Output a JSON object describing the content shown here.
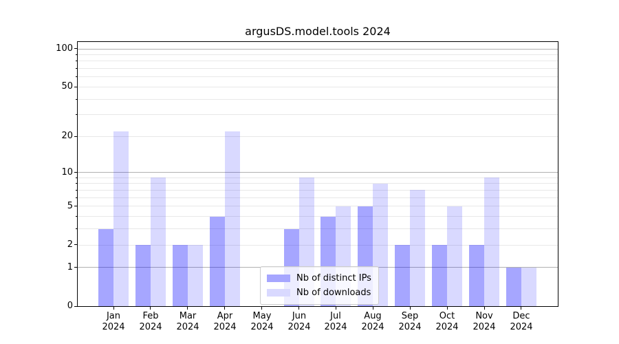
{
  "figure": {
    "background": "#ffffff"
  },
  "chart_data": {
    "type": "bar",
    "title": "argusDS.model.tools 2024",
    "xlabel": "",
    "ylabel": "",
    "categories": [
      "Jan",
      "Feb",
      "Mar",
      "Apr",
      "May",
      "Jun",
      "Jul",
      "Aug",
      "Sep",
      "Oct",
      "Nov",
      "Dec"
    ],
    "category_year": "2024",
    "series": [
      {
        "name": "Nb of distinct IPs",
        "bar_color": "rgba(0,0,255,0.35)",
        "legend_color": "#a6a6ff",
        "values": [
          3,
          2,
          2,
          4,
          0,
          3,
          4,
          5,
          2,
          2,
          2,
          1
        ]
      },
      {
        "name": "Nb of downloads",
        "bar_color": "rgba(0,0,255,0.15)",
        "legend_color": "#d9d9ff",
        "values": [
          22,
          9,
          2,
          22,
          0,
          9,
          5,
          8,
          7,
          5,
          9,
          1
        ]
      }
    ],
    "y_axis": {
      "scale": "log10(1+v)",
      "ylim": [
        0,
        113
      ],
      "ticks": [
        0,
        1,
        2,
        5,
        10,
        20,
        50,
        100
      ],
      "major_gridlines": [
        1,
        10,
        100
      ],
      "minor_gridlines": [
        2,
        3,
        4,
        5,
        6,
        7,
        8,
        9,
        20,
        30,
        40,
        50,
        60,
        70,
        80,
        90
      ]
    },
    "legend_position": "lower center",
    "grid": true,
    "colors": {
      "major_grid": "#b0b0b0",
      "minor_grid": "#e8e8e8",
      "spine": "#000000",
      "text": "#000000"
    }
  }
}
